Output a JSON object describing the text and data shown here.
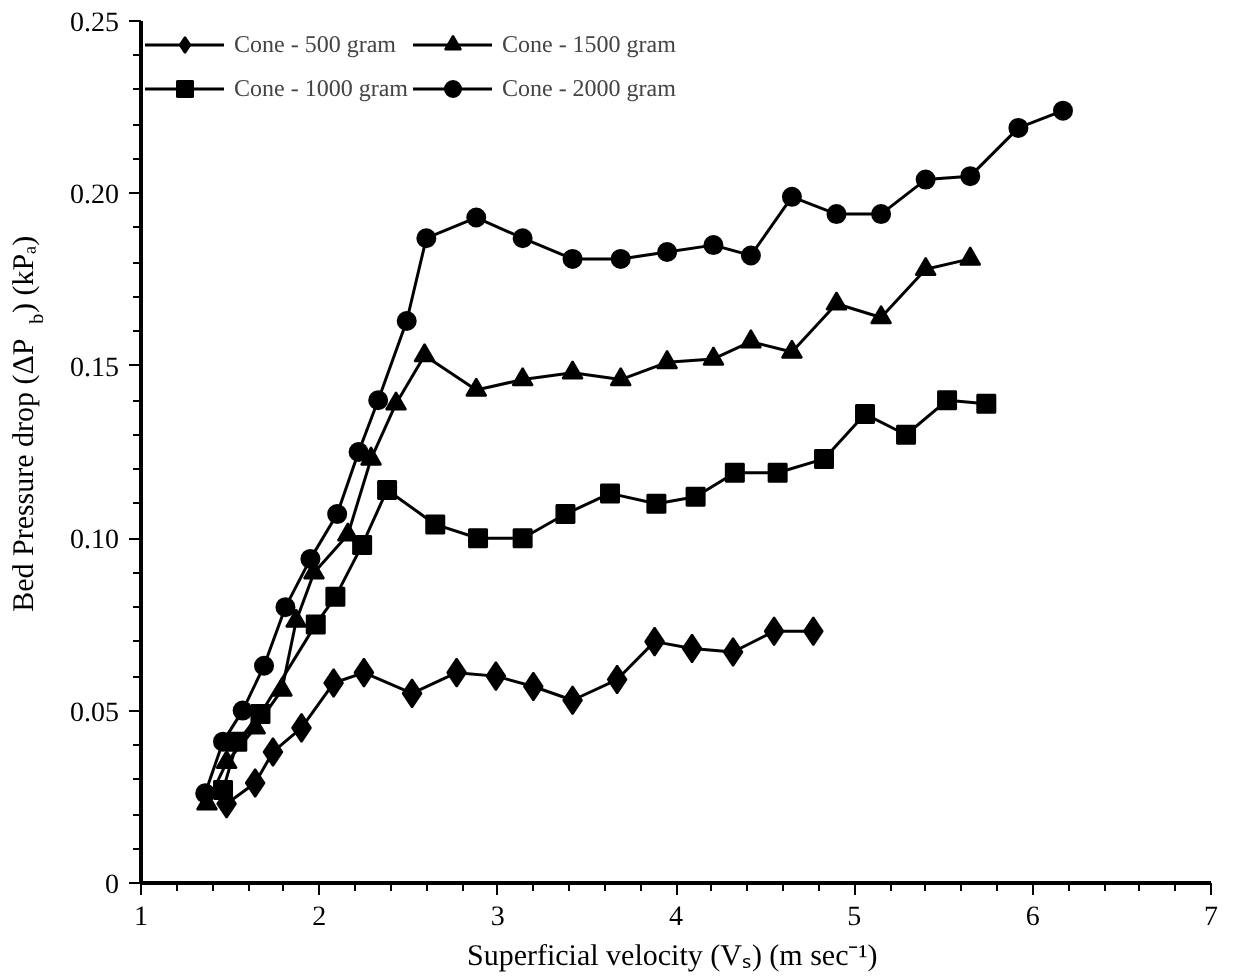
{
  "chart_data": {
    "type": "line",
    "xlabel": "Superficial velocity (Vₛ)  (m sec⁻¹)",
    "ylabel": "Bed Pressure drop (ΔP$_{b}$) (kPₐ)",
    "xlim": [
      1,
      7
    ],
    "ylim": [
      0,
      0.25
    ],
    "xticks": [
      1,
      2,
      3,
      4,
      5,
      6,
      7
    ],
    "yticks": [
      0,
      {
        "value": 0.05,
        "label": "0.05"
      },
      {
        "value": 0.1,
        "label": "0.10"
      },
      {
        "value": 0.15,
        "label": "0.15"
      },
      {
        "value": 0.2,
        "label": "0.20"
      },
      {
        "value": 0.25,
        "label": "0.25"
      }
    ],
    "grid": false,
    "legend": "top left",
    "line_style": "solid",
    "series": [
      {
        "name": "Cone - 500 gram",
        "color": "#000000",
        "marker": "diamond",
        "x": [
          1.48,
          1.64,
          1.74,
          1.9,
          2.08,
          2.25,
          2.52,
          2.77,
          2.99,
          3.2,
          3.42,
          3.67,
          3.88,
          4.09,
          4.32,
          4.55,
          4.77
        ],
        "values": [
          0.023,
          0.029,
          0.038,
          0.045,
          0.058,
          0.061,
          0.055,
          0.061,
          0.06,
          0.057,
          0.053,
          0.059,
          0.07,
          0.068,
          0.067,
          0.073,
          0.073
        ]
      },
      {
        "name": "Cone - 1000 gram",
        "color": "#000000",
        "marker": "square",
        "x": [
          1.46,
          1.54,
          1.67,
          1.98,
          2.09,
          2.24,
          2.38,
          2.65,
          2.89,
          3.14,
          3.38,
          3.63,
          3.89,
          4.11,
          4.33,
          4.57,
          4.83,
          5.06,
          5.29,
          5.52,
          5.74
        ],
        "values": [
          0.027,
          0.041,
          0.049,
          0.075,
          0.083,
          0.098,
          0.114,
          0.104,
          0.1,
          0.1,
          0.107,
          0.113,
          0.11,
          0.112,
          0.119,
          0.119,
          0.123,
          0.136,
          0.13,
          0.14,
          0.139
        ]
      },
      {
        "name": "Cone - 1500 gram",
        "color": "#000000",
        "marker": "triangle",
        "x": [
          1.37,
          1.48,
          1.64,
          1.79,
          1.87,
          1.97,
          2.16,
          2.29,
          2.43,
          2.59,
          2.88,
          3.14,
          3.42,
          3.69,
          3.95,
          4.21,
          4.42,
          4.65,
          4.9,
          5.15,
          5.4,
          5.65
        ],
        "values": [
          0.023,
          0.035,
          0.045,
          0.056,
          0.076,
          0.09,
          0.101,
          0.123,
          0.139,
          0.153,
          0.143,
          0.146,
          0.148,
          0.146,
          0.151,
          0.152,
          0.157,
          0.154,
          0.168,
          0.164,
          0.178,
          0.181
        ]
      },
      {
        "name": "Cone - 2000 gram",
        "color": "#000000",
        "marker": "circle",
        "x": [
          1.36,
          1.46,
          1.57,
          1.69,
          1.81,
          1.95,
          2.1,
          2.22,
          2.33,
          2.49,
          2.6,
          2.88,
          3.14,
          3.42,
          3.69,
          3.95,
          4.21,
          4.42,
          4.65,
          4.9,
          5.15,
          5.4,
          5.65,
          5.92,
          6.17
        ],
        "values": [
          0.026,
          0.041,
          0.05,
          0.063,
          0.08,
          0.094,
          0.107,
          0.125,
          0.14,
          0.163,
          0.187,
          0.193,
          0.187,
          0.181,
          0.181,
          0.183,
          0.185,
          0.182,
          0.199,
          0.194,
          0.194,
          0.204,
          0.205,
          0.219,
          0.224
        ]
      }
    ]
  }
}
